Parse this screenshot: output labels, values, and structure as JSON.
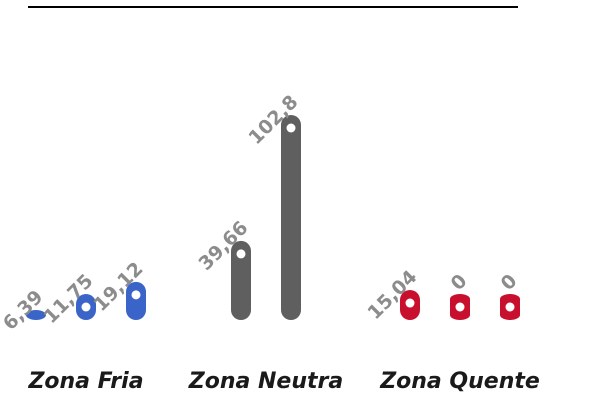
{
  "chart_data": {
    "type": "bar",
    "categories": [
      "Zona Fria",
      "Zona Neutra",
      "Zona Quente"
    ],
    "series_colors": {
      "Zona Fria": "#3b64c8",
      "Zona Neutra": "#5f5f5f",
      "Zona Quente": "#c8102e"
    },
    "groups": [
      {
        "category": "Zona Fria",
        "values": [
          6.39,
          11.75,
          19.12
        ],
        "labels": [
          "6,39",
          "11,75",
          "19,12"
        ]
      },
      {
        "category": "Zona Neutra",
        "values": [
          39.66,
          102.8
        ],
        "labels": [
          "39,66",
          "102,8"
        ]
      },
      {
        "category": "Zona Quente",
        "values": [
          15.04,
          0,
          0
        ],
        "labels": [
          "15,04",
          "0",
          "0"
        ]
      }
    ],
    "title": "",
    "xlabel": "",
    "ylabel": ""
  }
}
